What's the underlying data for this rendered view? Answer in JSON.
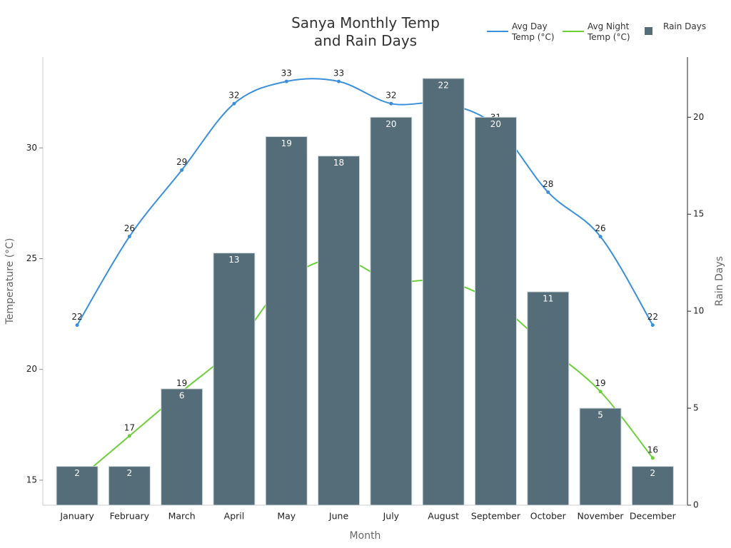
{
  "chart_data": {
    "type": "bar-line",
    "title": "Sanya Monthly Temp and Rain Days",
    "x_label": "Month",
    "y_label": "Temperature (°C)",
    "y2_label": "Rain Days",
    "categories": [
      "January",
      "February",
      "March",
      "April",
      "May",
      "June",
      "July",
      "August",
      "September",
      "October",
      "November",
      "December"
    ],
    "ylim": [
      13.87,
      34.1
    ],
    "yticks": [
      15,
      20,
      25,
      30
    ],
    "y2lim": [
      0,
      23.1
    ],
    "y2ticks": [
      0,
      5,
      10,
      15,
      20
    ],
    "series": [
      {
        "name": "Avg Day Temp (°C)",
        "type": "line",
        "color": "#3a8fdc",
        "values": [
          22,
          26,
          29,
          32,
          33,
          33,
          32,
          32,
          31,
          28,
          26,
          22
        ]
      },
      {
        "name": "Avg Night Temp (°C)",
        "type": "line",
        "color": "#6ccf3a",
        "values": [
          15,
          17,
          19,
          21,
          24,
          25,
          24,
          24,
          23,
          21,
          19,
          16
        ]
      },
      {
        "name": "Rain Days",
        "type": "bar",
        "axis": "y2",
        "color": "#556d78",
        "values": [
          2,
          2,
          6,
          13,
          19,
          18,
          20,
          22,
          20,
          11,
          5,
          2
        ]
      }
    ]
  }
}
